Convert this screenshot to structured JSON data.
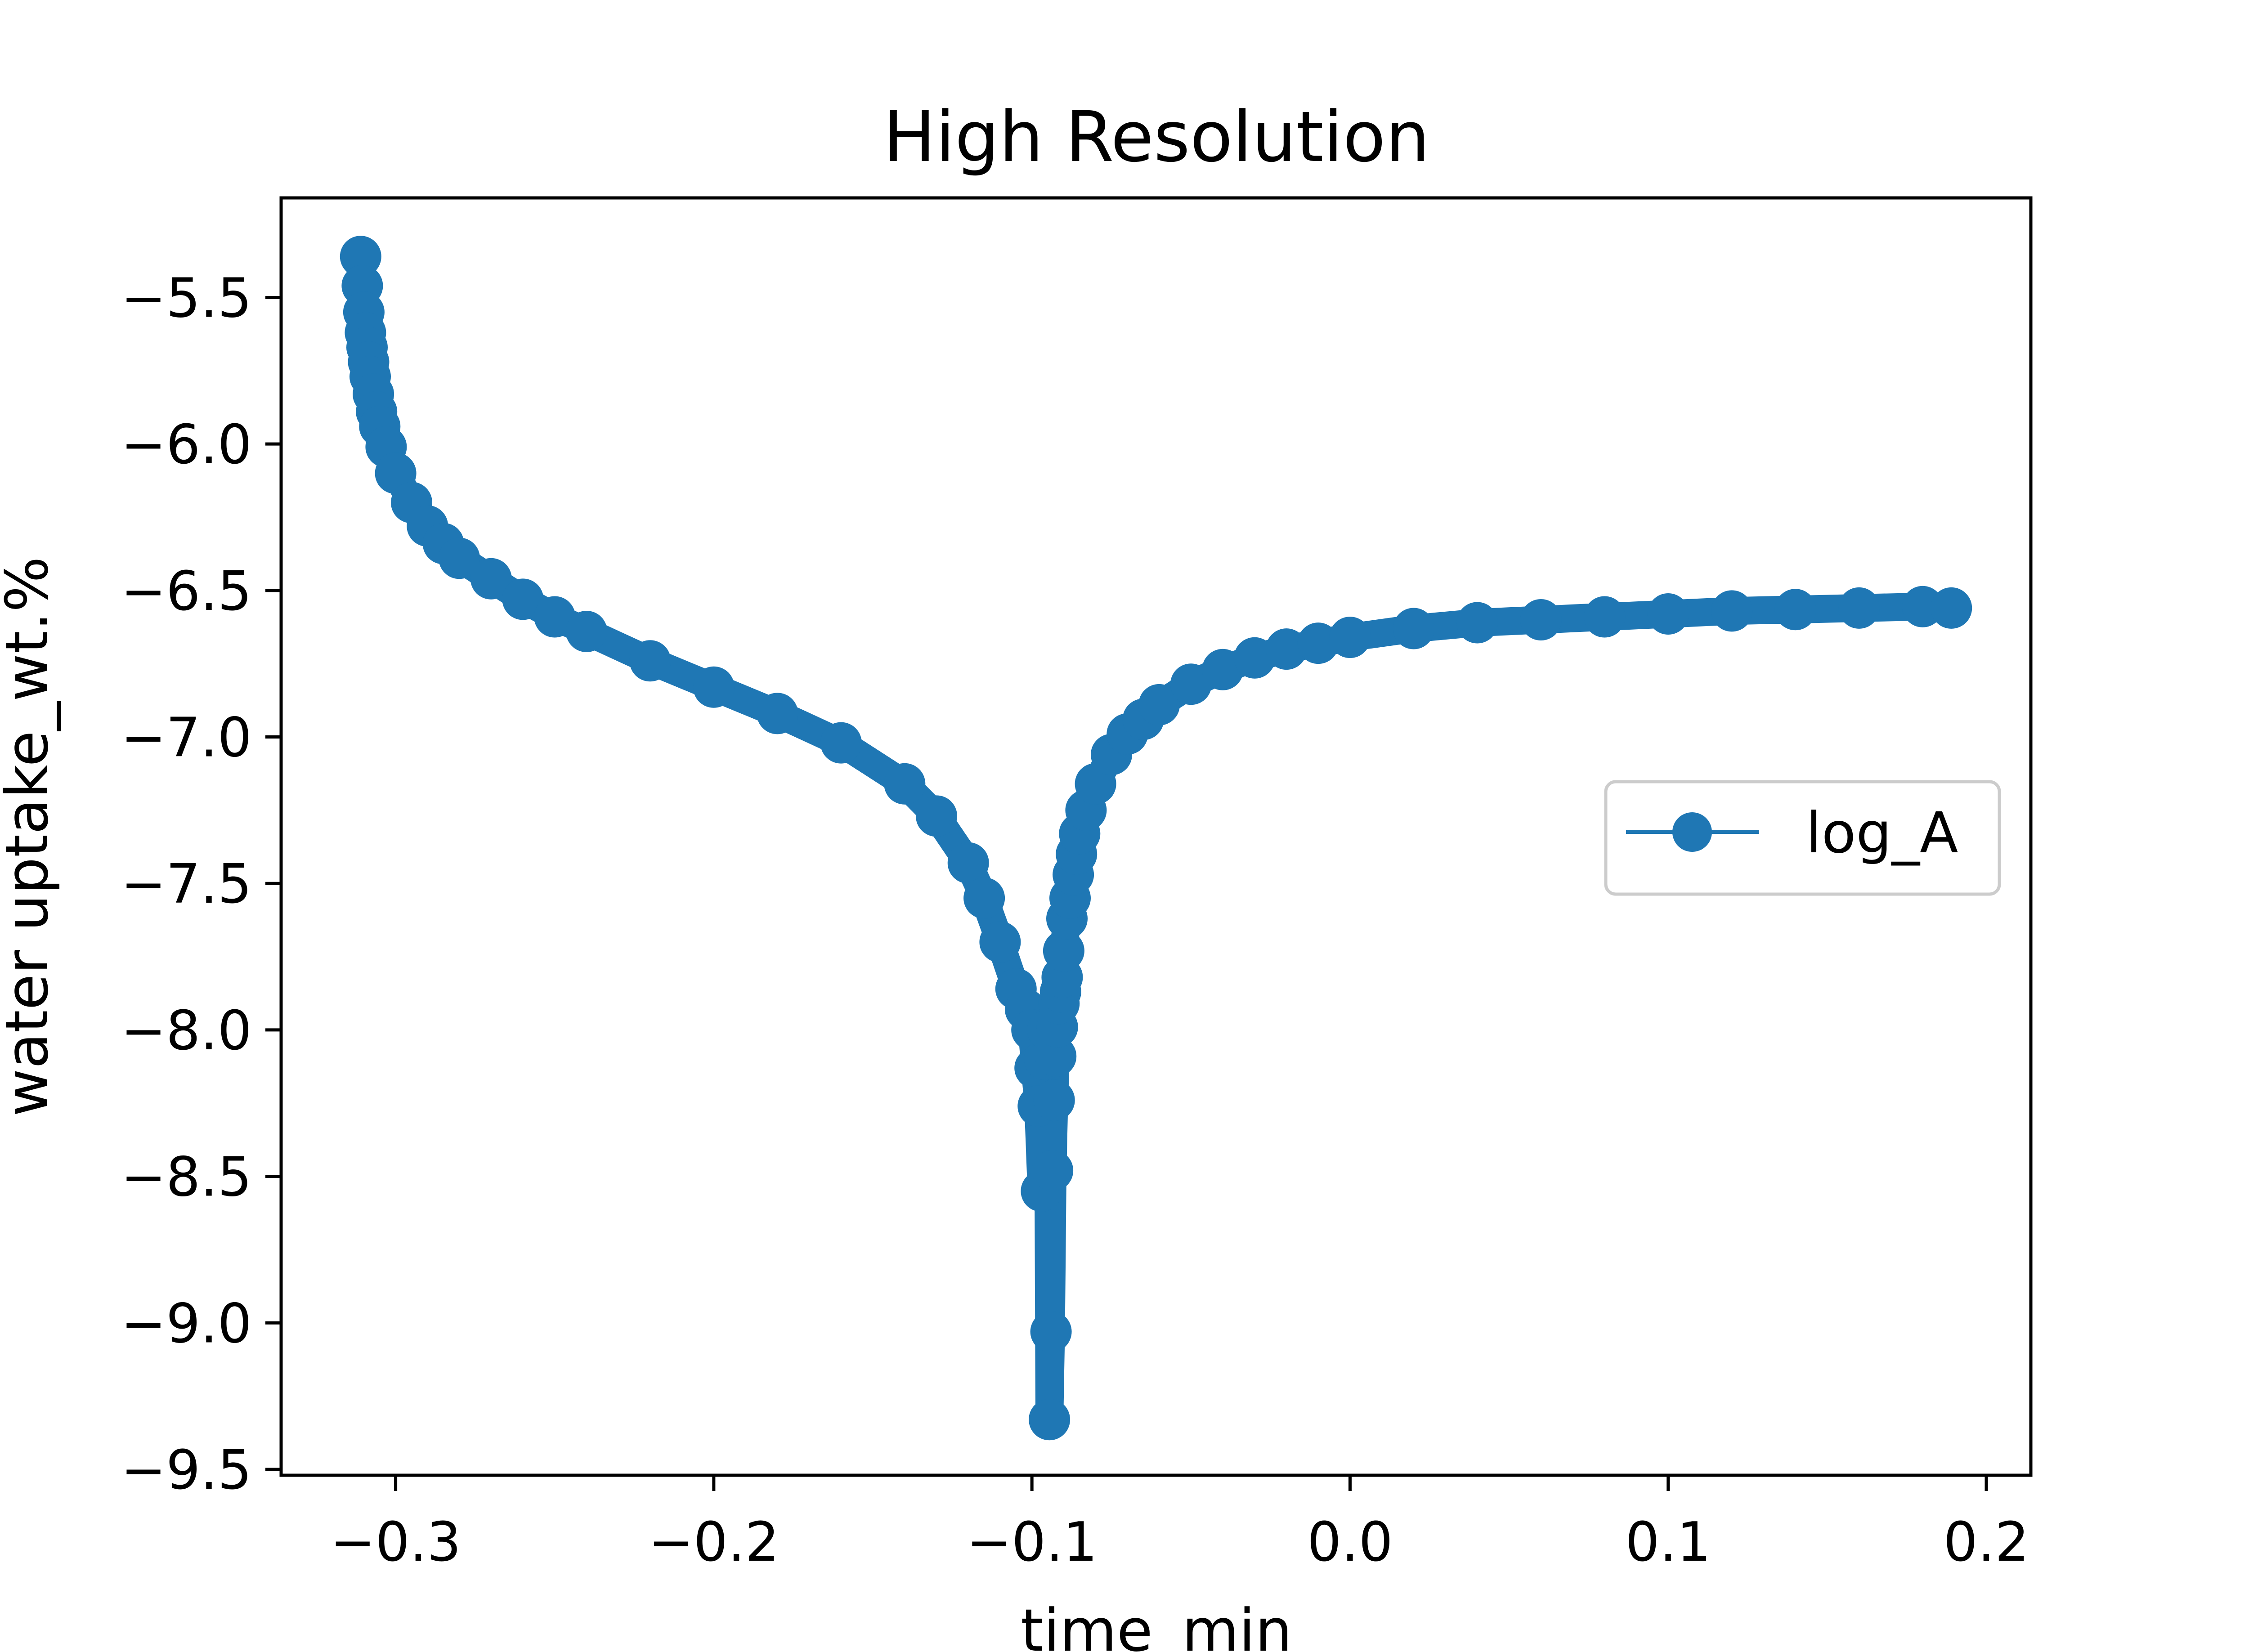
{
  "chart_data": {
    "type": "line",
    "title": "High Resolution",
    "xlabel": "time_min",
    "ylabel": "water uptake_wt.%",
    "xlim": [
      -0.336,
      0.214
    ],
    "ylim": [
      -9.52,
      -5.16
    ],
    "xticks": [
      -0.3,
      -0.2,
      -0.1,
      0.0,
      0.1,
      0.2
    ],
    "xtick_labels": [
      "−0.3",
      "−0.2",
      "−0.1",
      "0.0",
      "0.1",
      "0.2"
    ],
    "yticks": [
      -5.5,
      -6.0,
      -6.5,
      -7.0,
      -7.5,
      -8.0,
      -8.5,
      -9.0,
      -9.5
    ],
    "ytick_labels": [
      "−5.5",
      "−6.0",
      "−6.5",
      "−7.0",
      "−7.5",
      "−8.0",
      "−8.5",
      "−9.0",
      "−9.5"
    ],
    "grid": false,
    "legend_position": "center-right",
    "marker": "circle",
    "series": [
      {
        "name": "log_A",
        "color": "#1f77b4",
        "x": [
          -0.311,
          -0.3105,
          -0.31,
          -0.3095,
          -0.309,
          -0.3085,
          -0.308,
          -0.307,
          -0.306,
          -0.305,
          -0.303,
          -0.3,
          -0.295,
          -0.29,
          -0.285,
          -0.28,
          -0.27,
          -0.26,
          -0.25,
          -0.24,
          -0.22,
          -0.2,
          -0.18,
          -0.16,
          -0.14,
          -0.13,
          -0.12,
          -0.115,
          -0.11,
          -0.105,
          -0.102,
          -0.1,
          -0.099,
          -0.098,
          -0.097,
          -0.096,
          -0.095,
          -0.0945,
          -0.094,
          -0.0935,
          -0.093,
          -0.0925,
          -0.092,
          -0.0915,
          -0.091,
          -0.0905,
          -0.09,
          -0.089,
          -0.088,
          -0.087,
          -0.086,
          -0.085,
          -0.083,
          -0.08,
          -0.075,
          -0.07,
          -0.065,
          -0.06,
          -0.05,
          -0.04,
          -0.03,
          -0.02,
          -0.01,
          0.0,
          0.02,
          0.04,
          0.06,
          0.08,
          0.1,
          0.12,
          0.14,
          0.16,
          0.18,
          0.189
        ],
        "y": [
          -5.36,
          -5.46,
          -5.55,
          -5.62,
          -5.67,
          -5.72,
          -5.77,
          -5.83,
          -5.89,
          -5.94,
          -6.01,
          -6.1,
          -6.2,
          -6.28,
          -6.34,
          -6.39,
          -6.46,
          -6.53,
          -6.59,
          -6.64,
          -6.74,
          -6.83,
          -6.92,
          -7.02,
          -7.16,
          -7.27,
          -7.43,
          -7.55,
          -7.7,
          -7.86,
          -7.93,
          -8.0,
          -8.13,
          -8.26,
          -8.55,
          -8.1,
          -8.0,
          -9.33,
          -9.03,
          -8.48,
          -8.24,
          -8.09,
          -7.99,
          -7.91,
          -7.87,
          -7.82,
          -7.73,
          -7.62,
          -7.55,
          -7.47,
          -7.4,
          -7.33,
          -7.25,
          -7.16,
          -7.06,
          -6.99,
          -6.94,
          -6.89,
          -6.82,
          -6.77,
          -6.73,
          -6.7,
          -6.68,
          -6.66,
          -6.63,
          -6.61,
          -6.6,
          -6.59,
          -6.58,
          -6.57,
          -6.565,
          -6.56,
          -6.555,
          -6.56
        ]
      }
    ]
  }
}
